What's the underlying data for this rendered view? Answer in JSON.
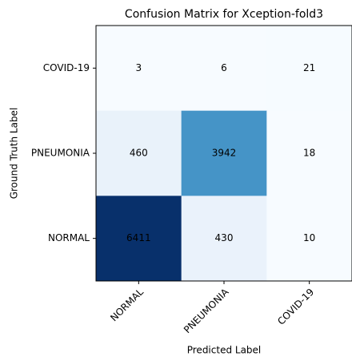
{
  "chart_data": {
    "type": "heatmap",
    "title": "Confusion Matrix for Xception-fold3",
    "x_label": "Predicted Label",
    "y_label": "Ground Truth Label",
    "x_categories": [
      "NORMAL",
      "PNEUMONIA",
      "COVID-19"
    ],
    "y_categories": [
      "COVID-19",
      "PNEUMONIA",
      "NORMAL"
    ],
    "values": [
      [
        3,
        6,
        21
      ],
      [
        460,
        3942,
        18
      ],
      [
        6411,
        430,
        10
      ]
    ],
    "colormap": [
      "#f7fbff",
      "#deebf7",
      "#c6dbef",
      "#9ecae1",
      "#6baed6",
      "#4292c6",
      "#2171b5",
      "#08519c",
      "#08306b"
    ]
  }
}
